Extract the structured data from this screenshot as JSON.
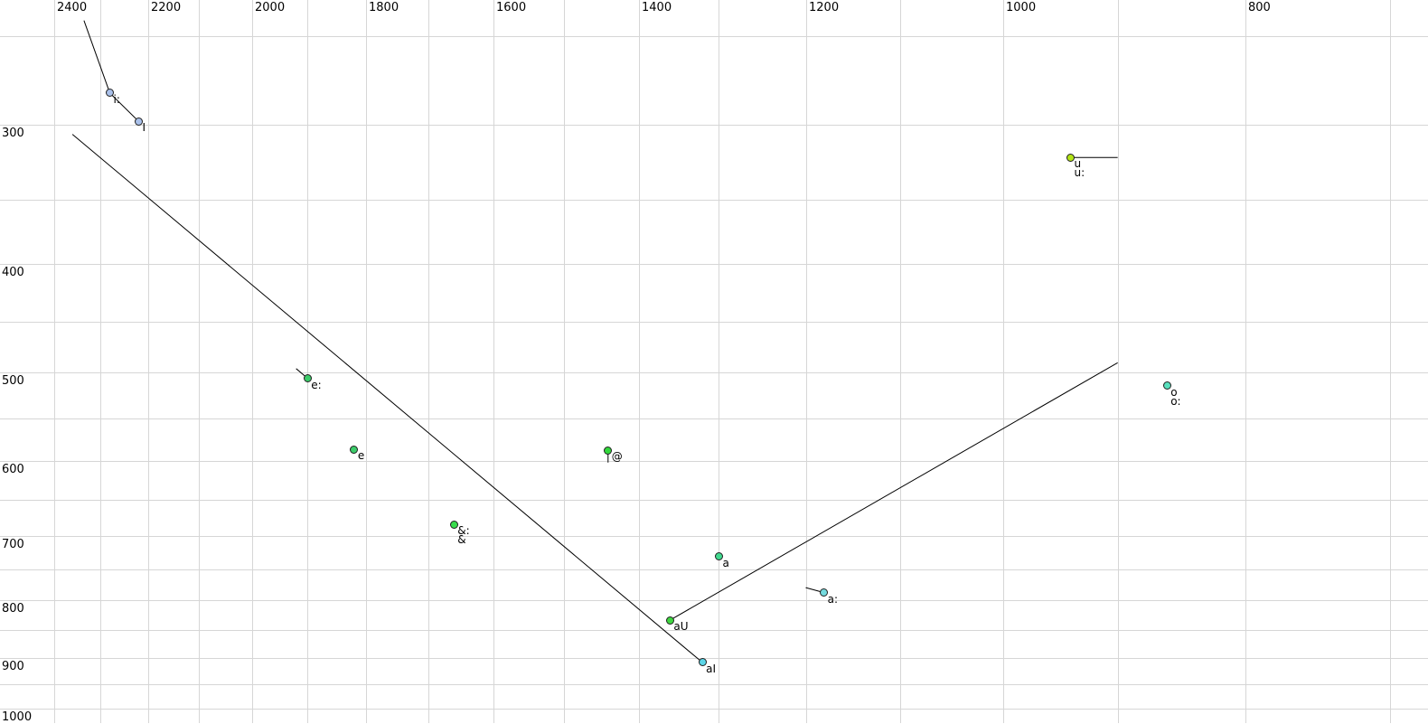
{
  "chart_data": {
    "type": "scatter",
    "title": "",
    "description_of_visible_content": "Vowel formant plot: F2 (Hz) on a reversed log x-axis, F1 (Hz) on a log y-axis, X-SAMPA vowel labels, black glide trajectory lines",
    "x_axis": {
      "label": "",
      "scale": "log",
      "reversed": true,
      "left_hz": 2523,
      "right_hz": 676,
      "tick_labels": [
        "2400",
        "2200",
        "2000",
        "1800",
        "1600",
        "1400",
        "1200",
        "1000",
        "800"
      ],
      "tick_values": [
        2400,
        2200,
        2000,
        1800,
        1600,
        1400,
        1200,
        1000,
        800
      ],
      "grid_from": 2400,
      "grid_to": 700,
      "grid_step": 100
    },
    "y_axis": {
      "label": "",
      "scale": "log",
      "top_hz": 232,
      "bottom_hz": 1030,
      "tick_labels": [
        "300",
        "400",
        "500",
        "600",
        "700",
        "800",
        "900",
        "1000"
      ],
      "tick_values": [
        300,
        400,
        500,
        600,
        700,
        800,
        900,
        1000
      ],
      "grid_from": 250,
      "grid_to": 1000,
      "grid_step": 50
    },
    "points": [
      {
        "labels": [
          "i:"
        ],
        "f2_hz": 2280,
        "f1_hz": 281,
        "color": "#a9c0ea"
      },
      {
        "labels": [
          "I"
        ],
        "f2_hz": 2220,
        "f1_hz": 298,
        "color": "#a9c0ea"
      },
      {
        "labels": [
          "u",
          "u:"
        ],
        "f2_hz": 940,
        "f1_hz": 321,
        "color": "#b2e416"
      },
      {
        "labels": [
          "e:"
        ],
        "f2_hz": 1900,
        "f1_hz": 506,
        "color": "#3ccc6a"
      },
      {
        "labels": [
          "e"
        ],
        "f2_hz": 1820,
        "f1_hz": 586,
        "color": "#3ccc6a"
      },
      {
        "labels": [
          "@"
        ],
        "f2_hz": 1440,
        "f1_hz": 587,
        "color": "#32d83c"
      },
      {
        "labels": [
          "&:",
          "&"
        ],
        "f2_hz": 1660,
        "f1_hz": 684,
        "color": "#38dc4c"
      },
      {
        "labels": [
          "a"
        ],
        "f2_hz": 1300,
        "f1_hz": 731,
        "color": "#41d98f"
      },
      {
        "labels": [
          "a:"
        ],
        "f2_hz": 1180,
        "f1_hz": 787,
        "color": "#74dade"
      },
      {
        "labels": [
          "aU"
        ],
        "f2_hz": 1360,
        "f1_hz": 833,
        "color": "#3fd640"
      },
      {
        "labels": [
          "aI"
        ],
        "f2_hz": 1320,
        "f1_hz": 909,
        "color": "#5cd6e8"
      },
      {
        "labels": [
          "o",
          "o:"
        ],
        "f2_hz": 860,
        "f1_hz": 514,
        "color": "#58e0bd"
      }
    ],
    "segments": [
      {
        "from": [
          2335,
          242
        ],
        "to": [
          2280,
          281
        ]
      },
      {
        "from": [
          2280,
          281
        ],
        "to": [
          2220,
          298
        ]
      },
      {
        "from": [
          2360,
          306
        ],
        "to": [
          1320,
          909
        ]
      },
      {
        "from": [
          940,
          321
        ],
        "to": [
          900,
          321
        ]
      },
      {
        "from": [
          1360,
          833
        ],
        "to": [
          900,
          490
        ]
      },
      {
        "from": [
          1920,
          496
        ],
        "to": [
          1900,
          506
        ]
      },
      {
        "from": [
          1440,
          587
        ],
        "to": [
          1440,
          602
        ]
      },
      {
        "from": [
          1200,
          779
        ],
        "to": [
          1180,
          787
        ]
      }
    ],
    "style": {
      "background": "#ffffff",
      "grid_color": "#d6d6d6",
      "line_color": "#000000",
      "marker_outline": "#1f1f1f",
      "text_color": "#000000"
    },
    "legend": null
  }
}
